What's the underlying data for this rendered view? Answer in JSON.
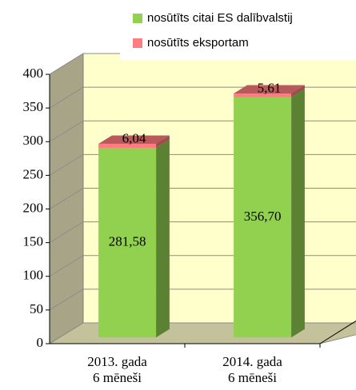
{
  "chart_data": {
    "type": "bar3d_stacked",
    "categories": [
      [
        "2013. gada",
        "6 mēneši"
      ],
      [
        "2014. gada",
        "6 mēneši"
      ]
    ],
    "series": [
      {
        "name": "nosūtīts citai ES dalībvalstij",
        "color": "#92d050",
        "values": [
          281.58,
          356.7
        ],
        "value_labels": [
          "281,58",
          "356,70"
        ]
      },
      {
        "name": "nosūtīts eksportam",
        "color": "#ff7c80",
        "values": [
          6.04,
          5.61
        ],
        "value_labels": [
          "6,04",
          "5,61"
        ]
      }
    ],
    "ylim": [
      0,
      400
    ],
    "yticks": [
      0,
      50,
      100,
      150,
      200,
      250,
      300,
      350,
      400
    ],
    "grid": true
  }
}
